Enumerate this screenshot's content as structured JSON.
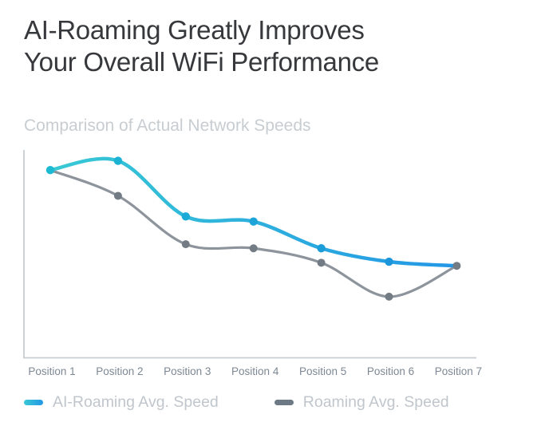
{
  "page": {
    "title_line1": "AI-Roaming Greatly Improves",
    "title_line2": "Your Overall WiFi Performance",
    "subtitle": "Comparison of Actual Network Speeds"
  },
  "legend": [
    {
      "label": "AI-Roaming Avg. Speed",
      "swatch": "gradient-cyan-to-blue"
    },
    {
      "label": "Roaming Avg. Speed",
      "swatch": "solid-gray"
    }
  ],
  "colors": {
    "title": "#36383b",
    "subtitle": "#c8cdd1",
    "axis": "#c7cdd2",
    "x_labels": "#7d8894",
    "legend_text": "#c0c6cc",
    "ai_line_gradient_start": "#38c9d4",
    "ai_line_gradient_end": "#2397e6",
    "ai_dot_gradient_start": "#1cb9d2",
    "ai_dot_gradient_end": "#1b8fdd",
    "roaming_line": "#8d949c",
    "roaming_dot": "#737b84"
  },
  "chart_data": {
    "type": "line",
    "title": "Comparison of Actual Network Speeds",
    "categories": [
      "Position 1",
      "Position 2",
      "Position 3",
      "Position 4",
      "Position 5",
      "Position 6",
      "Position 7"
    ],
    "series": [
      {
        "name": "AI-Roaming Avg. Speed",
        "color_start": "#38c9d4",
        "color_end": "#2397e6",
        "values": [
          91,
          95.5,
          68.5,
          66,
          53,
          46.5,
          44.5
        ]
      },
      {
        "name": "Roaming Avg. Speed",
        "color": "#8d949c",
        "values": [
          91,
          78.5,
          55,
          53,
          46,
          29.5,
          44.5
        ]
      }
    ],
    "xlabel": "",
    "ylabel": "",
    "ylim": [
      0,
      100
    ],
    "y_axis_tick_labels_visible": false,
    "grid": false,
    "curve": "smooth",
    "legend_position": "bottom"
  }
}
